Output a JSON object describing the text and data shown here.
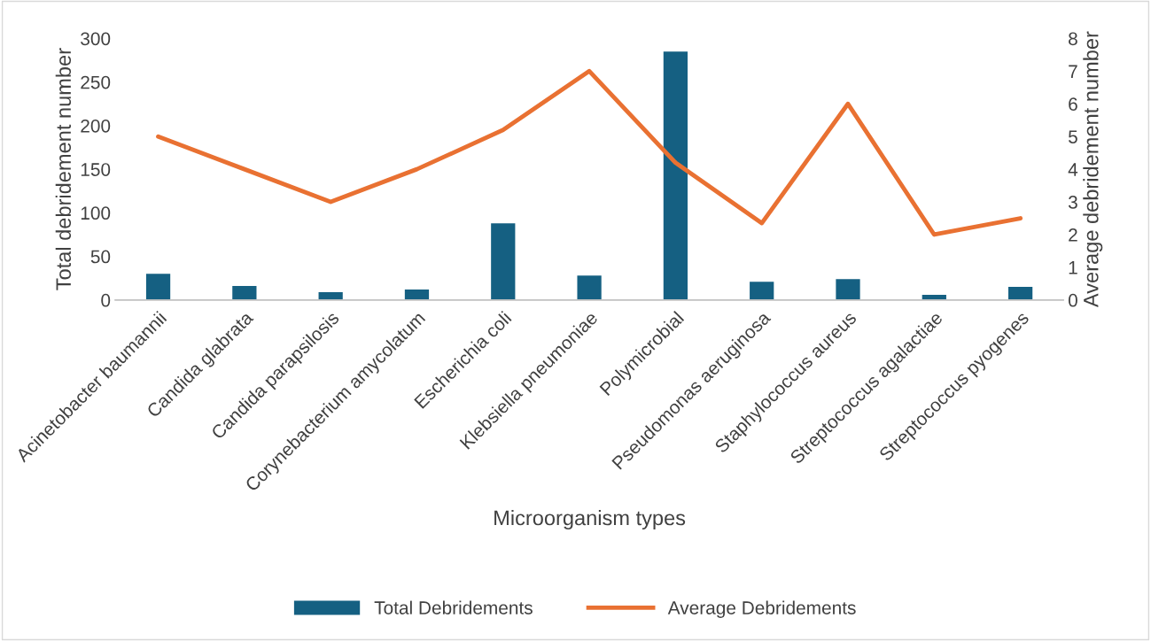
{
  "chart_data": {
    "type": "bar",
    "xlabel": "Microorganism types",
    "ylabel": "Total debridement number",
    "y2label": "Average debridement number",
    "categories": [
      "Acinetobacter baumannii",
      "Candida glabrata",
      "Candida parapsilosis",
      "Corynebacterium amycolatum",
      "Escherichia coli",
      "Klebsiella pneumoniae",
      "Polymicrobial",
      "Pseudomonas aeruginosa",
      "Staphylococcus aureus",
      "Streptococcus agalactiae",
      "Streptococcus pyogenes"
    ],
    "series": [
      {
        "name": "Total Debridements",
        "color": "#156082",
        "values": [
          30,
          16,
          9,
          12,
          88,
          28,
          285,
          21,
          24,
          6,
          15
        ]
      },
      {
        "name": "Average Debridements",
        "type": "line",
        "axis": "y2",
        "color": "#e97132",
        "values": [
          5,
          4,
          3,
          4,
          5.2,
          7,
          4.2,
          2.35,
          6,
          2,
          2.5
        ]
      }
    ],
    "ylim": [
      0,
      300
    ],
    "yticks": [
      0,
      50,
      100,
      150,
      200,
      250,
      300
    ],
    "y2lim": [
      0,
      8
    ],
    "y2ticks": [
      0,
      1,
      2,
      3,
      4,
      5,
      6,
      7,
      8
    ],
    "grid": false,
    "legend": "bottom",
    "marker": "none",
    "line_style": "solid"
  }
}
